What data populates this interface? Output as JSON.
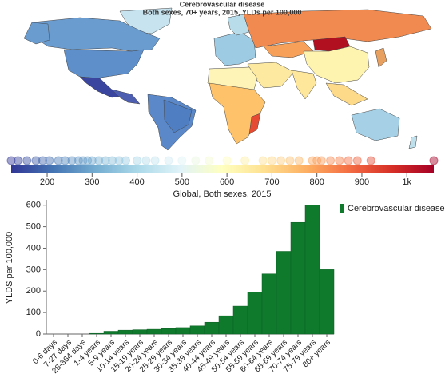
{
  "chart_data": [
    {
      "type": "strip",
      "title": "Cerebrovascular disease",
      "subtitle": "Both sexes, 70+ years, 2015, YLDs per 100,000",
      "xlabel": "Global, Both sexes, 2015",
      "xlim": [
        120,
        1060
      ],
      "xticks": [
        200,
        300,
        400,
        500,
        600,
        700,
        800,
        900,
        {
          "value": 1000,
          "label": "1k"
        }
      ],
      "colors": [
        "#313695",
        "#4575b4",
        "#74add1",
        "#abd9e9",
        "#e0f3f8",
        "#ffffbf",
        "#fee090",
        "#fdae61",
        "#f46d43",
        "#d73027",
        "#a50026"
      ],
      "values": [
        120,
        135,
        155,
        175,
        190,
        205,
        225,
        240,
        255,
        270,
        280,
        290,
        300,
        315,
        330,
        345,
        360,
        375,
        400,
        420,
        440,
        470,
        500,
        530,
        560,
        600,
        640,
        680,
        700,
        720,
        740,
        760,
        790,
        800,
        810,
        830,
        850,
        870,
        890,
        920,
        1060
      ]
    },
    {
      "type": "bar",
      "ylabel": "YLDS per 100,000",
      "legend": "top-right",
      "series": [
        {
          "name": "Cerebrovascular disease",
          "color": "#0f7a2c",
          "values": [
            0,
            0,
            0,
            3,
            13,
            18,
            20,
            22,
            25,
            30,
            38,
            55,
            85,
            130,
            195,
            280,
            385,
            520,
            600,
            300
          ]
        }
      ],
      "categories": [
        "0-6 days",
        "7-27 days",
        "28-364 days",
        "1-4 years",
        "5-9 years",
        "10-14 years",
        "15-19 years",
        "20-24 years",
        "25-29 years",
        "30-34 years",
        "35-39 years",
        "40-44 years",
        "45-49 years",
        "50-54 years",
        "55-59 years",
        "60-64 years",
        "65-69 years",
        "70-74 years",
        "75-79 years",
        "80+ years"
      ],
      "ylim": [
        0,
        625
      ],
      "yticks": [
        0,
        100,
        200,
        300,
        400,
        500,
        600
      ]
    }
  ]
}
